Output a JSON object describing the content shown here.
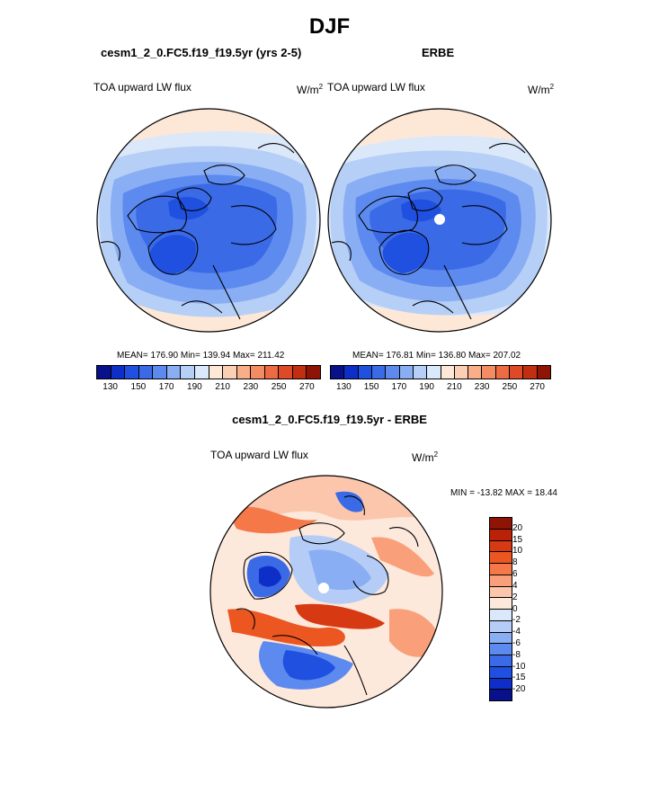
{
  "title": "DJF",
  "panel_left": {
    "title": "cesm1_2_0.FC5.f19_f19.5yr (yrs 2-5)",
    "variable": "TOA upward LW flux",
    "units": "W/m",
    "units_sup": "2",
    "stats": "MEAN= 176.90  Min= 139.94  Max= 211.42"
  },
  "panel_right": {
    "title": "ERBE",
    "variable": "TOA upward LW flux",
    "units": "W/m",
    "units_sup": "2",
    "stats": "MEAN= 176.81  Min= 136.80  Max= 207.02"
  },
  "panel_diff": {
    "title": "cesm1_2_0.FC5.f19_f19.5yr - ERBE",
    "variable": "TOA upward LW flux",
    "units": "W/m",
    "units_sup": "2",
    "minmax": "MIN = -13.82 MAX =  18.44"
  },
  "colorbar_top": {
    "labels": [
      "130",
      "150",
      "170",
      "190",
      "210",
      "230",
      "250",
      "270"
    ],
    "colors": [
      "#08108a",
      "#0e2ec8",
      "#1f50e0",
      "#3a6ae6",
      "#5d8aef",
      "#8aaef3",
      "#b6cff7",
      "#d9e8fb",
      "#fde8d8",
      "#fbcfb4",
      "#f9ae88",
      "#f48c63",
      "#ee6a43",
      "#de4a25",
      "#c22e10",
      "#8e1406"
    ]
  },
  "colorbar_diff": {
    "labels": [
      "20",
      "15",
      "10",
      "8",
      "6",
      "4",
      "2",
      "0",
      "-2",
      "-4",
      "-6",
      "-8",
      "-10",
      "-15",
      "-20"
    ],
    "colors": [
      "#8e1406",
      "#b92208",
      "#d73a12",
      "#ec5620",
      "#f47848",
      "#f9a07a",
      "#fbc6ac",
      "#fde8dc",
      "#dbe8fa",
      "#b5cdf6",
      "#8aaef3",
      "#5d8aef",
      "#3a6ae6",
      "#1f50e0",
      "#0e2ec8",
      "#08108a"
    ]
  },
  "map_colors": {
    "land_line": "#000000",
    "diff_warm": "#ee5a2e",
    "diff_cool": "#2e5ae4"
  }
}
